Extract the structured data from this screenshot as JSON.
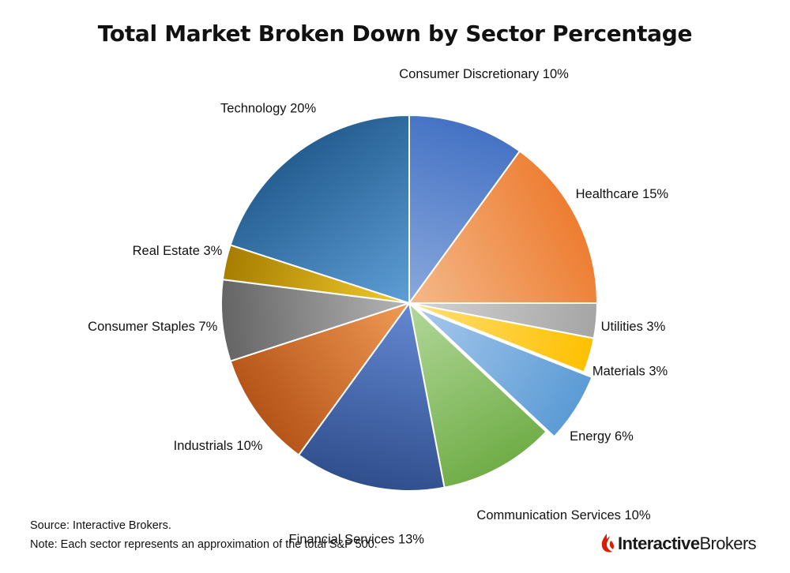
{
  "chart_data": {
    "type": "pie",
    "title": "Total Market Broken Down by Sector Percentage",
    "start_angle_deg": 0,
    "direction": "clockwise",
    "slices": [
      {
        "label": "Consumer Discretionary 10%",
        "name": "Consumer Discretionary",
        "value": 10,
        "color_light": "#8AA9DD",
        "color_dark": "#4472C4",
        "exploded": false
      },
      {
        "label": "Healthcare 15%",
        "name": "Healthcare",
        "value": 15,
        "color_light": "#F4B98A",
        "color_dark": "#ED7D31",
        "exploded": false
      },
      {
        "label": "Utilities 3%",
        "name": "Utilities",
        "value": 3,
        "color_light": "#D4D4D4",
        "color_dark": "#A5A5A5",
        "exploded": false
      },
      {
        "label": "Materials 3%",
        "name": "Materials",
        "value": 3,
        "color_light": "#FFE07A",
        "color_dark": "#FFC000",
        "exploded": false
      },
      {
        "label": "Energy 6%",
        "name": "Energy",
        "value": 6,
        "color_light": "#A7C8EC",
        "color_dark": "#5B9BD5",
        "exploded": true
      },
      {
        "label": "Communication Services 10%",
        "name": "Communication Services",
        "value": 10,
        "color_light": "#B2D89A",
        "color_dark": "#70AD47",
        "exploded": false
      },
      {
        "label": "Financial Services 13%",
        "name": "Financial Services",
        "value": 13,
        "color_light": "#6488D2",
        "color_dark": "#2F4E8C",
        "exploded": false
      },
      {
        "label": "Industrials 10%",
        "name": "Industrials",
        "value": 10,
        "color_light": "#F09A55",
        "color_dark": "#B55418",
        "exploded": false
      },
      {
        "label": "Consumer Staples 7%",
        "name": "Consumer Staples",
        "value": 7,
        "color_light": "#B5B5B5",
        "color_dark": "#646464",
        "exploded": false
      },
      {
        "label": "Real Estate 3%",
        "name": "Real Estate",
        "value": 3,
        "color_light": "#F5CC2E",
        "color_dark": "#A67D00",
        "exploded": false
      },
      {
        "label": "Technology 20%",
        "name": "Technology",
        "value": 20,
        "color_light": "#5E9ED6",
        "color_dark": "#255E91",
        "exploded": false
      }
    ],
    "legend": "none"
  },
  "footnotes": {
    "source": "Source: Interactive Brokers.",
    "note": "Note: Each sector represents an approximation of the total S&P 500."
  },
  "logo": {
    "text_bold": "Interactive",
    "text_regular": "Brokers",
    "color": "#D81E05"
  }
}
